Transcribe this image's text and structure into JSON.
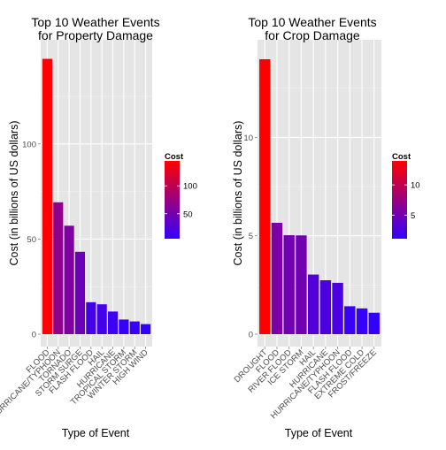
{
  "chart_data": [
    {
      "type": "bar",
      "title_lines": [
        "Top 10 Weather Events",
        "for Property Damage"
      ],
      "xlabel": "Type of Event",
      "ylabel": "Cost (in billions of US dollars)",
      "categories": [
        "FLOOD",
        "HURRICANE/TYPHOON",
        "TORNADO",
        "STORM SURGE",
        "FLASH FLOOD",
        "HAIL",
        "HURRICANE",
        "TROPICAL STORM",
        "WINTER STORM",
        "HIGH WIND"
      ],
      "values": [
        144.7,
        69.3,
        57.0,
        43.3,
        16.8,
        15.7,
        11.9,
        7.7,
        6.7,
        5.3
      ],
      "ylim": [
        0,
        151
      ],
      "yticks": [
        0,
        50,
        100
      ],
      "legend": {
        "title": "Cost",
        "min": 5.3,
        "max": 144.7,
        "ticks": [
          50,
          100
        ],
        "placement": "right"
      },
      "colors": {
        "low": "#3300ff",
        "high": "#ff0000"
      },
      "grid": true
    },
    {
      "type": "bar",
      "title_lines": [
        "Top 10 Weather Events",
        "for Crop Damage"
      ],
      "xlabel": "Type of Event",
      "ylabel": "Cost (in billions of US dollars)",
      "categories": [
        "DROUGHT",
        "FLOOD",
        "RIVER FLOOD",
        "ICE STORM",
        "HAIL",
        "HURRICANE",
        "HURRICANE/TYPHOON",
        "FLASH FLOOD",
        "EXTREME COLD",
        "FROST/FREEZE"
      ],
      "values": [
        13.97,
        5.66,
        5.03,
        5.02,
        3.03,
        2.74,
        2.61,
        1.42,
        1.31,
        1.09
      ],
      "ylim": [
        0,
        14.6
      ],
      "yticks": [
        0,
        5,
        10
      ],
      "legend": {
        "title": "Cost",
        "min": 1.09,
        "max": 13.97,
        "ticks": [
          5,
          10
        ],
        "placement": "right"
      },
      "colors": {
        "low": "#3300ff",
        "high": "#ff0000"
      },
      "grid": true
    }
  ]
}
